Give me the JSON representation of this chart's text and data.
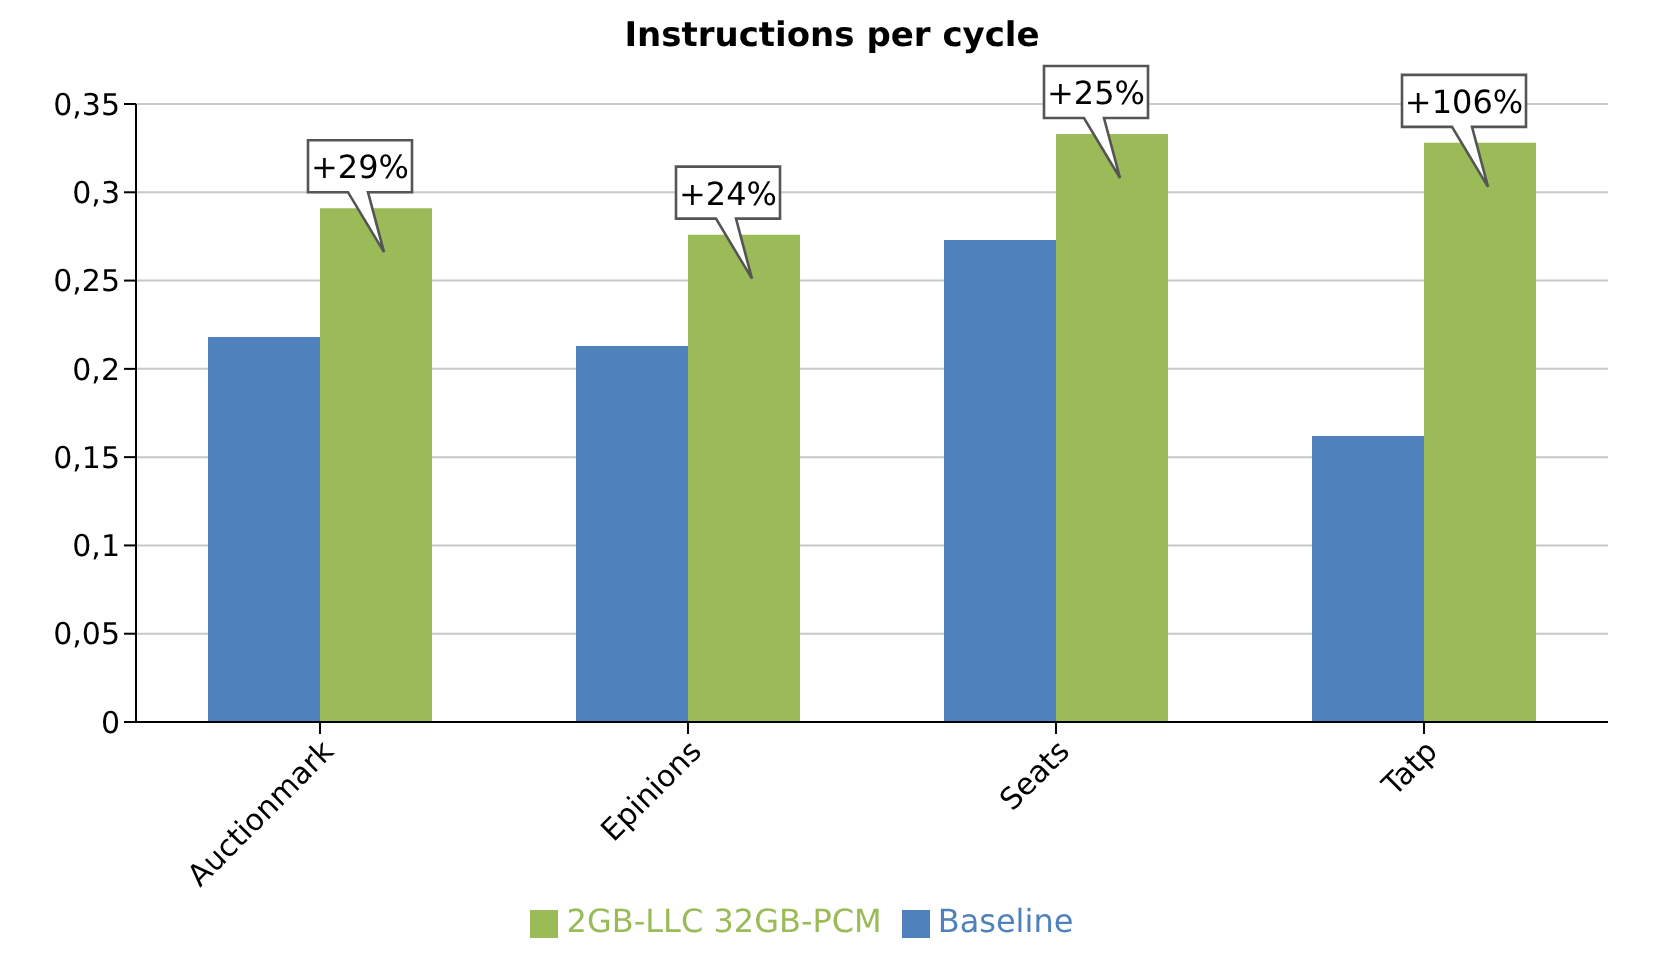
{
  "chart_data": {
    "type": "bar",
    "title": "Instructions per cycle",
    "categories": [
      "Auctionmark",
      "Epinions",
      "Seats",
      "Tatp"
    ],
    "series": [
      {
        "name": "Baseline",
        "color": "#4f81bd",
        "values": [
          0.218,
          0.213,
          0.273,
          0.162
        ]
      },
      {
        "name": "2GB-LLC 32GB-PCM",
        "color": "#9bbb59",
        "values": [
          0.291,
          0.276,
          0.333,
          0.328
        ]
      }
    ],
    "ylim": [
      0,
      0.35
    ],
    "yticks": [
      0,
      {
        "value": 0.05,
        "label": "0,05"
      },
      {
        "value": 0.1,
        "label": "0,1"
      },
      {
        "value": 0.15,
        "label": "0,15"
      },
      {
        "value": 0.2,
        "label": "0,2"
      },
      {
        "value": 0.25,
        "label": "0,25"
      },
      {
        "value": 0.3,
        "label": "0,3"
      },
      {
        "value": 0.35,
        "label": "0,35"
      }
    ],
    "annotations": [
      {
        "text": "+29%",
        "x": "Auctionmark",
        "y": 0.291
      },
      {
        "text": "+24%",
        "x": "Epinions",
        "y": 0.276
      },
      {
        "text": "+25%",
        "x": "Seats",
        "y": 0.333
      },
      {
        "text": "+106%",
        "x": "Tatp",
        "y": 0.328
      }
    ],
    "grid": "y",
    "legend": "bottom"
  }
}
